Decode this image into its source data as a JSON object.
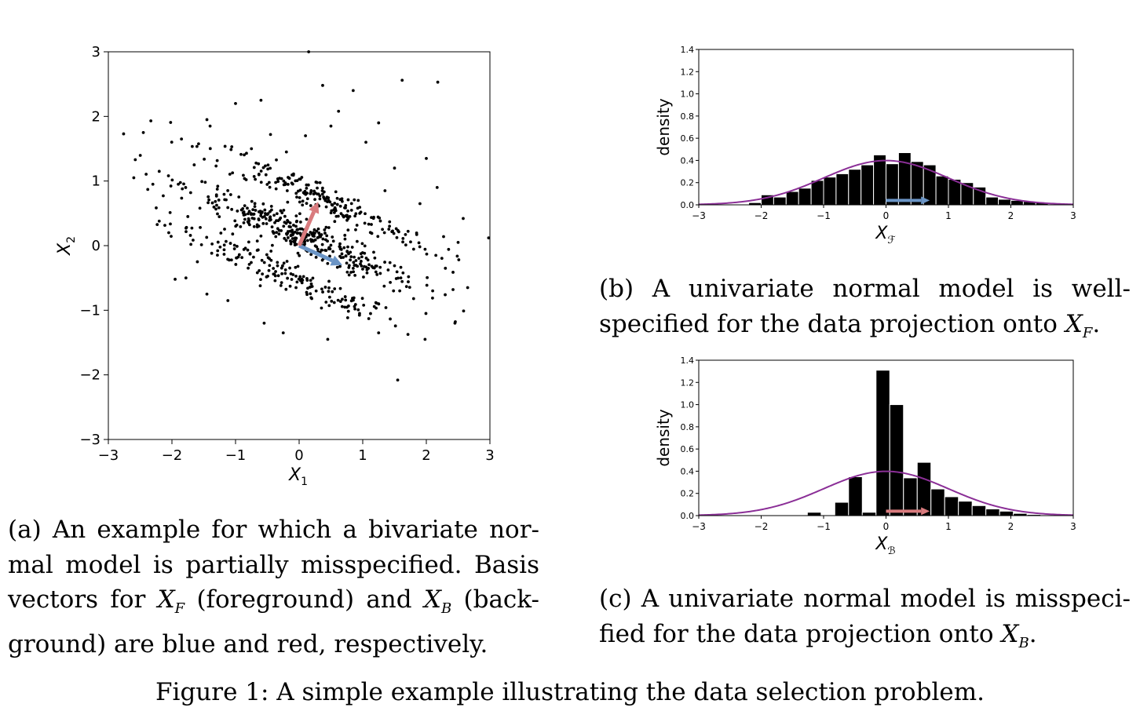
{
  "chart_data": [
    {
      "id": "a",
      "type": "scatter",
      "xlabel": "X",
      "xlabel_sub": "1",
      "ylabel": "X",
      "ylabel_sub": "2",
      "xlim": [
        -3,
        3
      ],
      "ylim": [
        -3,
        3
      ],
      "xticks": [
        -3,
        -2,
        -1,
        0,
        1,
        2,
        3
      ],
      "yticks": [
        -3,
        -2,
        -1,
        0,
        1,
        2,
        3
      ],
      "xtick_labels": [
        "−3",
        "−2",
        "−1",
        "0",
        "1",
        "2",
        "3"
      ],
      "ytick_labels": [
        "−3",
        "−2",
        "−1",
        "0",
        "1",
        "2",
        "3"
      ],
      "points": [
        [
          -2.76,
          1.73
        ],
        [
          -2.45,
          1.75
        ],
        [
          -2.38,
          0.87
        ],
        [
          -2.6,
          1.05
        ],
        [
          -2.2,
          1.15
        ],
        [
          -1.85,
          1.65
        ],
        [
          -1.45,
          1.95
        ],
        [
          -1.4,
          1.85
        ],
        [
          -1.0,
          2.2
        ],
        [
          -0.6,
          2.25
        ],
        [
          0.15,
          3.0
        ],
        [
          0.37,
          2.48
        ],
        [
          0.62,
          2.08
        ],
        [
          1.62,
          2.56
        ],
        [
          2.18,
          2.53
        ],
        [
          1.25,
          1.9
        ],
        [
          2.0,
          1.35
        ],
        [
          2.17,
          0.9
        ],
        [
          2.58,
          0.42
        ],
        [
          2.98,
          0.12
        ],
        [
          2.3,
          -0.35
        ],
        [
          2.42,
          -0.68
        ],
        [
          2.45,
          -1.2
        ],
        [
          1.98,
          -1.45
        ],
        [
          1.55,
          -2.08
        ],
        [
          0.45,
          -1.45
        ],
        [
          -0.25,
          -1.35
        ],
        [
          -1.78,
          -0.5
        ],
        [
          -1.95,
          -0.52
        ],
        [
          -2.2,
          0.38
        ],
        [
          -1.12,
          -0.85
        ],
        [
          -1.45,
          -0.75
        ],
        [
          -0.55,
          -1.2
        ],
        [
          0.95,
          -1.05
        ],
        [
          1.25,
          -1.35
        ],
        [
          2.65,
          -0.65
        ],
        [
          1.8,
          -0.82
        ],
        [
          2.1,
          -0.7
        ],
        [
          -2.05,
          0.2
        ],
        [
          -0.75,
          1.5
        ],
        [
          0.5,
          1.85
        ],
        [
          0.85,
          2.4
        ],
        [
          1.5,
          1.2
        ],
        [
          2.5,
          0.05
        ],
        [
          -2.3,
          0.95
        ],
        [
          1.05,
          1.6
        ],
        [
          -0.2,
          1.45
        ],
        [
          -1.65,
          1.25
        ],
        [
          -1.75,
          0.45
        ],
        [
          -1.6,
          -0.25
        ],
        [
          1.9,
          0.65
        ],
        [
          2.15,
          -0.15
        ],
        [
          0.1,
          1.7
        ],
        [
          -0.45,
          1.72
        ],
        [
          1.35,
          0.85
        ],
        [
          -1.9,
          0.95
        ]
      ],
      "vectors": [
        {
          "name": "foreground",
          "color": "#6b95c6",
          "from": [
            0,
            0
          ],
          "to": [
            0.68,
            -0.3
          ]
        },
        {
          "name": "background",
          "color": "#d97b7e",
          "from": [
            0,
            0
          ],
          "to": [
            0.3,
            0.68
          ]
        }
      ]
    },
    {
      "id": "b",
      "type": "bar",
      "ylabel": "density",
      "xlabel": "X",
      "xlabel_sub": "ℱ",
      "xlim": [
        -3,
        3
      ],
      "ylim": [
        0,
        1.4
      ],
      "xticks": [
        -3,
        -2,
        -1,
        0,
        1,
        2,
        3
      ],
      "yticks": [
        0.0,
        0.2,
        0.4,
        0.6,
        0.8,
        1.0,
        1.2,
        1.4
      ],
      "xtick_labels": [
        "−3",
        "−2",
        "−1",
        "0",
        "1",
        "2",
        "3"
      ],
      "ytick_labels": [
        "0.0",
        "0.2",
        "0.4",
        "0.6",
        "0.8",
        "1.0",
        "1.2",
        "1.4"
      ],
      "bin_width": 0.2,
      "bins": [
        [
          -2.2,
          0.02
        ],
        [
          -2.0,
          0.09
        ],
        [
          -1.8,
          0.07
        ],
        [
          -1.6,
          0.12
        ],
        [
          -1.4,
          0.15
        ],
        [
          -1.2,
          0.22
        ],
        [
          -1.0,
          0.25
        ],
        [
          -0.8,
          0.28
        ],
        [
          -0.6,
          0.32
        ],
        [
          -0.4,
          0.36
        ],
        [
          -0.2,
          0.45
        ],
        [
          0.0,
          0.37
        ],
        [
          0.2,
          0.47
        ],
        [
          0.4,
          0.39
        ],
        [
          0.6,
          0.36
        ],
        [
          0.8,
          0.26
        ],
        [
          1.0,
          0.23
        ],
        [
          1.2,
          0.2
        ],
        [
          1.4,
          0.16
        ],
        [
          1.6,
          0.07
        ],
        [
          1.8,
          0.05
        ],
        [
          2.0,
          0.04
        ],
        [
          2.2,
          0.03
        ],
        [
          2.4,
          0.02
        ]
      ],
      "curve": {
        "type": "normal_pdf",
        "mean": 0,
        "sd": 1,
        "color": "#8b2f97"
      },
      "arrow": {
        "color": "#6b95c6",
        "from": 0,
        "to": 0.7,
        "y": 0.04
      }
    },
    {
      "id": "c",
      "type": "bar",
      "ylabel": "density",
      "xlabel": "X",
      "xlabel_sub": "ℬ",
      "xlim": [
        -3,
        3
      ],
      "ylim": [
        0,
        1.4
      ],
      "xticks": [
        -3,
        -2,
        -1,
        0,
        1,
        2,
        3
      ],
      "yticks": [
        0.0,
        0.2,
        0.4,
        0.6,
        0.8,
        1.0,
        1.2,
        1.4
      ],
      "xtick_labels": [
        "−3",
        "−2",
        "−1",
        "0",
        "1",
        "2",
        "3"
      ],
      "ytick_labels": [
        "0.0",
        "0.2",
        "0.4",
        "0.6",
        "0.8",
        "1.0",
        "1.2",
        "1.4"
      ],
      "bin_width": 0.22,
      "bins": [
        [
          -1.26,
          0.03
        ],
        [
          -0.82,
          0.12
        ],
        [
          -0.6,
          0.35
        ],
        [
          -0.38,
          0.03
        ],
        [
          -0.16,
          1.31
        ],
        [
          0.06,
          1.0
        ],
        [
          0.28,
          0.34
        ],
        [
          0.5,
          0.48
        ],
        [
          0.72,
          0.24
        ],
        [
          0.94,
          0.17
        ],
        [
          1.16,
          0.13
        ],
        [
          1.38,
          0.09
        ],
        [
          1.6,
          0.06
        ],
        [
          1.82,
          0.04
        ],
        [
          2.04,
          0.02
        ],
        [
          2.26,
          0.01
        ]
      ],
      "curve": {
        "type": "normal_pdf",
        "mean": 0,
        "sd": 1,
        "color": "#8b2f97"
      },
      "arrow": {
        "color": "#d97b7e",
        "from": 0,
        "to": 0.7,
        "y": 0.04
      }
    }
  ],
  "captions": {
    "a": {
      "line1": "(a) An example for which a bivariate nor-",
      "line2": "mal model is partially misspecified.  Basis",
      "line3_pre": "vectors for ",
      "line3_sym1": "X",
      "line3_sub1": "F",
      "line3_mid": " (foreground) and ",
      "line3_sym2": "X",
      "line3_sub2": "B",
      "line3_post": " (back-",
      "line4": "ground) are blue and red, respectively."
    },
    "b": {
      "line1": "(b)  A  univariate  normal  model  is  well-",
      "line2_pre": "specified for the data projection onto ",
      "line2_sym": "X",
      "line2_sub": "F",
      "line2_post": "."
    },
    "c": {
      "line1": "(c) A univariate normal model is misspeci-",
      "line2_pre": "fied for the data projection onto ",
      "line2_sym": "X",
      "line2_sub": "B",
      "line2_post": "."
    },
    "figure": "Figure 1: A simple example illustrating the data selection problem."
  }
}
